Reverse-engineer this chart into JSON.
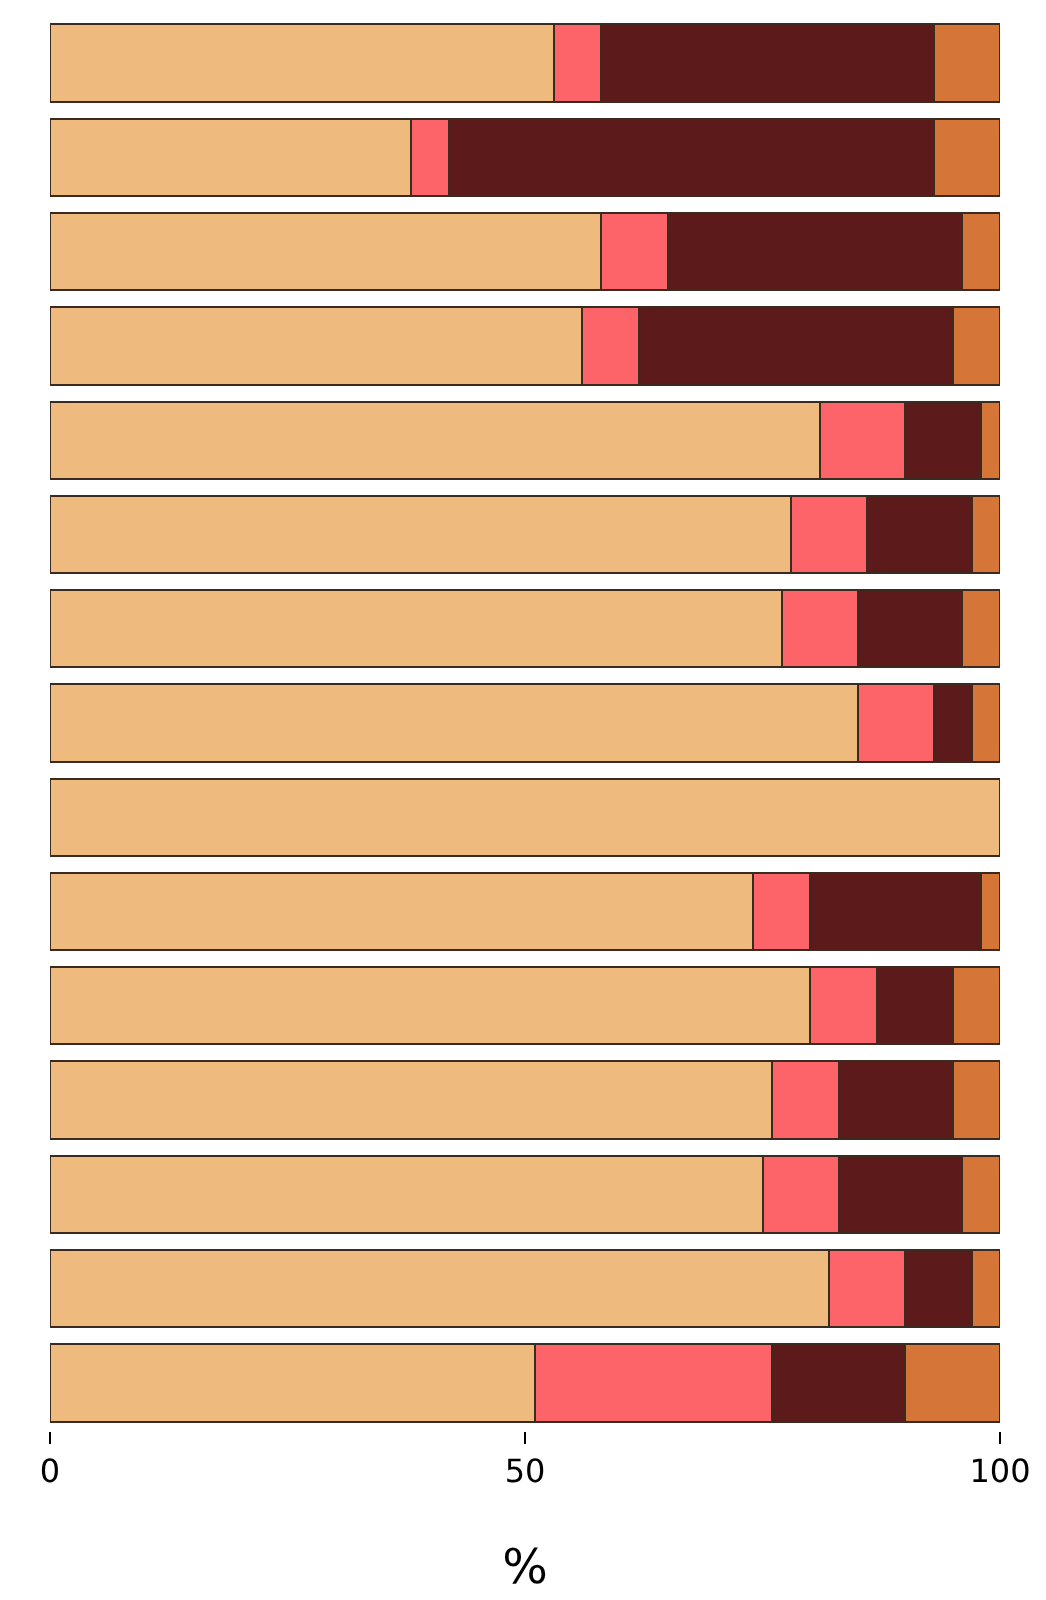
{
  "chart_data": {
    "type": "bar",
    "orientation": "horizontal",
    "stacked": true,
    "xlabel": "%",
    "xlim": [
      0,
      100
    ],
    "xticks": [
      0,
      50,
      100
    ],
    "categories": [
      null,
      null,
      null,
      null,
      null,
      null,
      null,
      null,
      null,
      null,
      null,
      null,
      null,
      null,
      null
    ],
    "series": [
      {
        "color": "#efba7e",
        "values": [
          53,
          38,
          58,
          56,
          81,
          78,
          77,
          85,
          100,
          74,
          80,
          76,
          75,
          82,
          51
        ]
      },
      {
        "color": "#fd6469",
        "values": [
          5,
          4,
          7,
          6,
          9,
          8,
          8,
          8,
          0,
          6,
          7,
          7,
          8,
          8,
          25
        ]
      },
      {
        "color": "#5c1a1a",
        "values": [
          35,
          51,
          31,
          33,
          8,
          11,
          11,
          4,
          0,
          18,
          8,
          12,
          13,
          7,
          14
        ]
      },
      {
        "color": "#d57538",
        "values": [
          7,
          7,
          4,
          5,
          2,
          3,
          4,
          3,
          0,
          2,
          5,
          5,
          4,
          3,
          10
        ]
      }
    ]
  }
}
